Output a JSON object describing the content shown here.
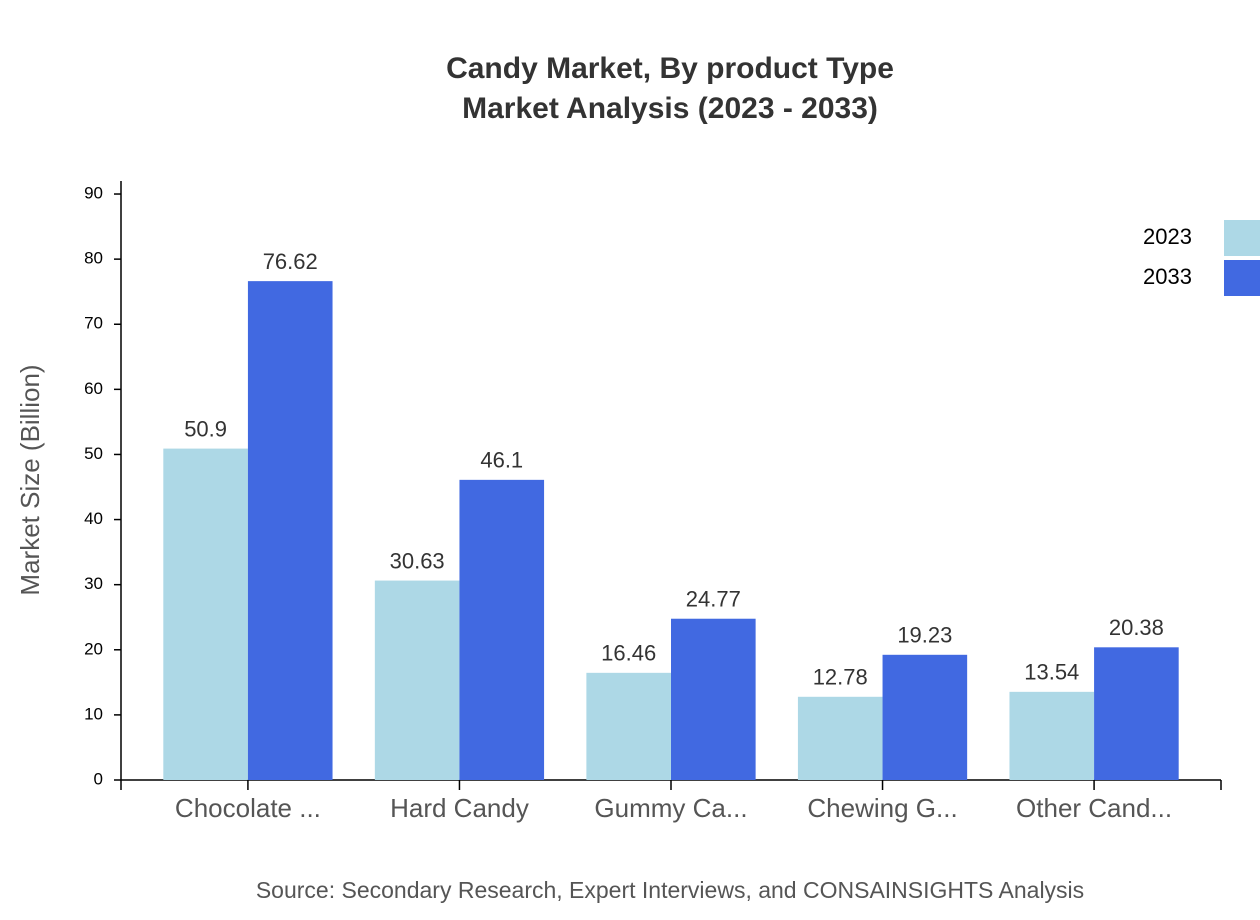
{
  "chart_data": {
    "type": "bar",
    "title": "Candy Market, By product Type",
    "subtitle": "Market Analysis (2023 - 2033)",
    "y_label": "Market Size (Billion)",
    "source": "Source: Secondary Research, Expert Interviews, and CONSAINSIGHTS Analysis",
    "categories": [
      "Chocolate ...",
      "Hard Candy",
      "Gummy Ca...",
      "Chewing G...",
      "Other Cand..."
    ],
    "series": [
      {
        "name": "2023",
        "color": "#add8e6",
        "values": [
          50.9,
          30.63,
          16.46,
          12.78,
          13.54
        ]
      },
      {
        "name": "2033",
        "color": "#4169e1",
        "values": [
          76.62,
          46.1,
          24.77,
          19.23,
          20.38
        ]
      }
    ],
    "ylim": [
      0,
      92
    ],
    "yticks": [
      0,
      10,
      20,
      30,
      40,
      50,
      60,
      70,
      80,
      90
    ],
    "legend": "top-right"
  }
}
